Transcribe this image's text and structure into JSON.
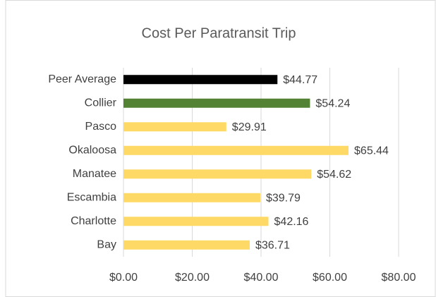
{
  "chart_data": {
    "type": "bar",
    "orientation": "horizontal",
    "title": "Cost Per Paratransit Trip",
    "categories": [
      "Peer Average",
      "Collier",
      "Pasco",
      "Okaloosa",
      "Manatee",
      "Escambia",
      "Charlotte",
      "Bay"
    ],
    "values": [
      44.77,
      54.24,
      29.91,
      65.44,
      54.62,
      39.79,
      42.16,
      36.71
    ],
    "value_labels": [
      "$44.77",
      "$54.24",
      "$29.91",
      "$65.44",
      "$54.62",
      "$39.79",
      "$42.16",
      "$36.71"
    ],
    "colors": [
      "#000000",
      "#548235",
      "#ffd966",
      "#ffd966",
      "#ffd966",
      "#ffd966",
      "#ffd966",
      "#ffd966"
    ],
    "xlim": [
      0,
      80
    ],
    "xticks": [
      {
        "value": 0,
        "label": "$0.00"
      },
      {
        "value": 20,
        "label": "$20.00"
      },
      {
        "value": 40,
        "label": "$40.00"
      },
      {
        "value": 60,
        "label": "$60.00"
      },
      {
        "value": 80,
        "label": "$80.00"
      }
    ],
    "grid": true
  }
}
